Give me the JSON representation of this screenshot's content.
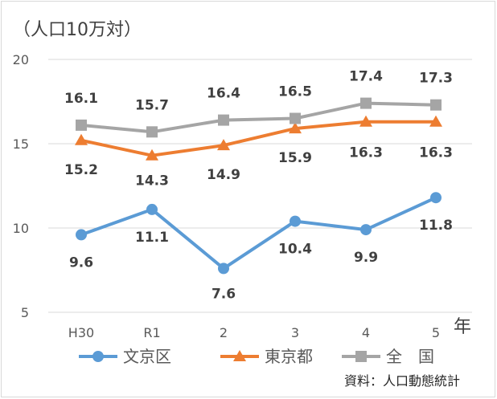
{
  "chart_data": {
    "type": "line",
    "unit_label": "（人口10万対）",
    "categories": [
      "H30",
      "R1",
      "2",
      "3",
      "4",
      "5"
    ],
    "x_suffix": "年",
    "ylim": [
      5,
      20
    ],
    "yticks": [
      5,
      10,
      15,
      20
    ],
    "grid": true,
    "legend_position": "bottom",
    "series": [
      {
        "name": "文京区",
        "values": [
          9.6,
          11.1,
          7.6,
          10.4,
          9.9,
          11.8
        ],
        "color": "#5B9BD5",
        "marker": "circle",
        "labels": [
          "9.6",
          "11.1",
          "7.6",
          "10.4",
          "9.9",
          "11.8"
        ],
        "label_position": "below"
      },
      {
        "name": "東京都",
        "values": [
          15.2,
          14.3,
          14.9,
          15.9,
          16.3,
          16.3
        ],
        "color": "#ED7D31",
        "marker": "triangle",
        "labels": [
          "15.2",
          "14.3",
          "14.9",
          "15.9",
          "16.3",
          "16.3"
        ],
        "label_position": "below"
      },
      {
        "name": "全　国",
        "values": [
          16.1,
          15.7,
          16.4,
          16.5,
          17.4,
          17.3
        ],
        "color": "#A5A5A5",
        "marker": "square",
        "labels": [
          "16.1",
          "15.7",
          "16.4",
          "16.5",
          "17.4",
          "17.3"
        ],
        "label_position": "above"
      }
    ],
    "source": "資料：人口動態統計"
  }
}
